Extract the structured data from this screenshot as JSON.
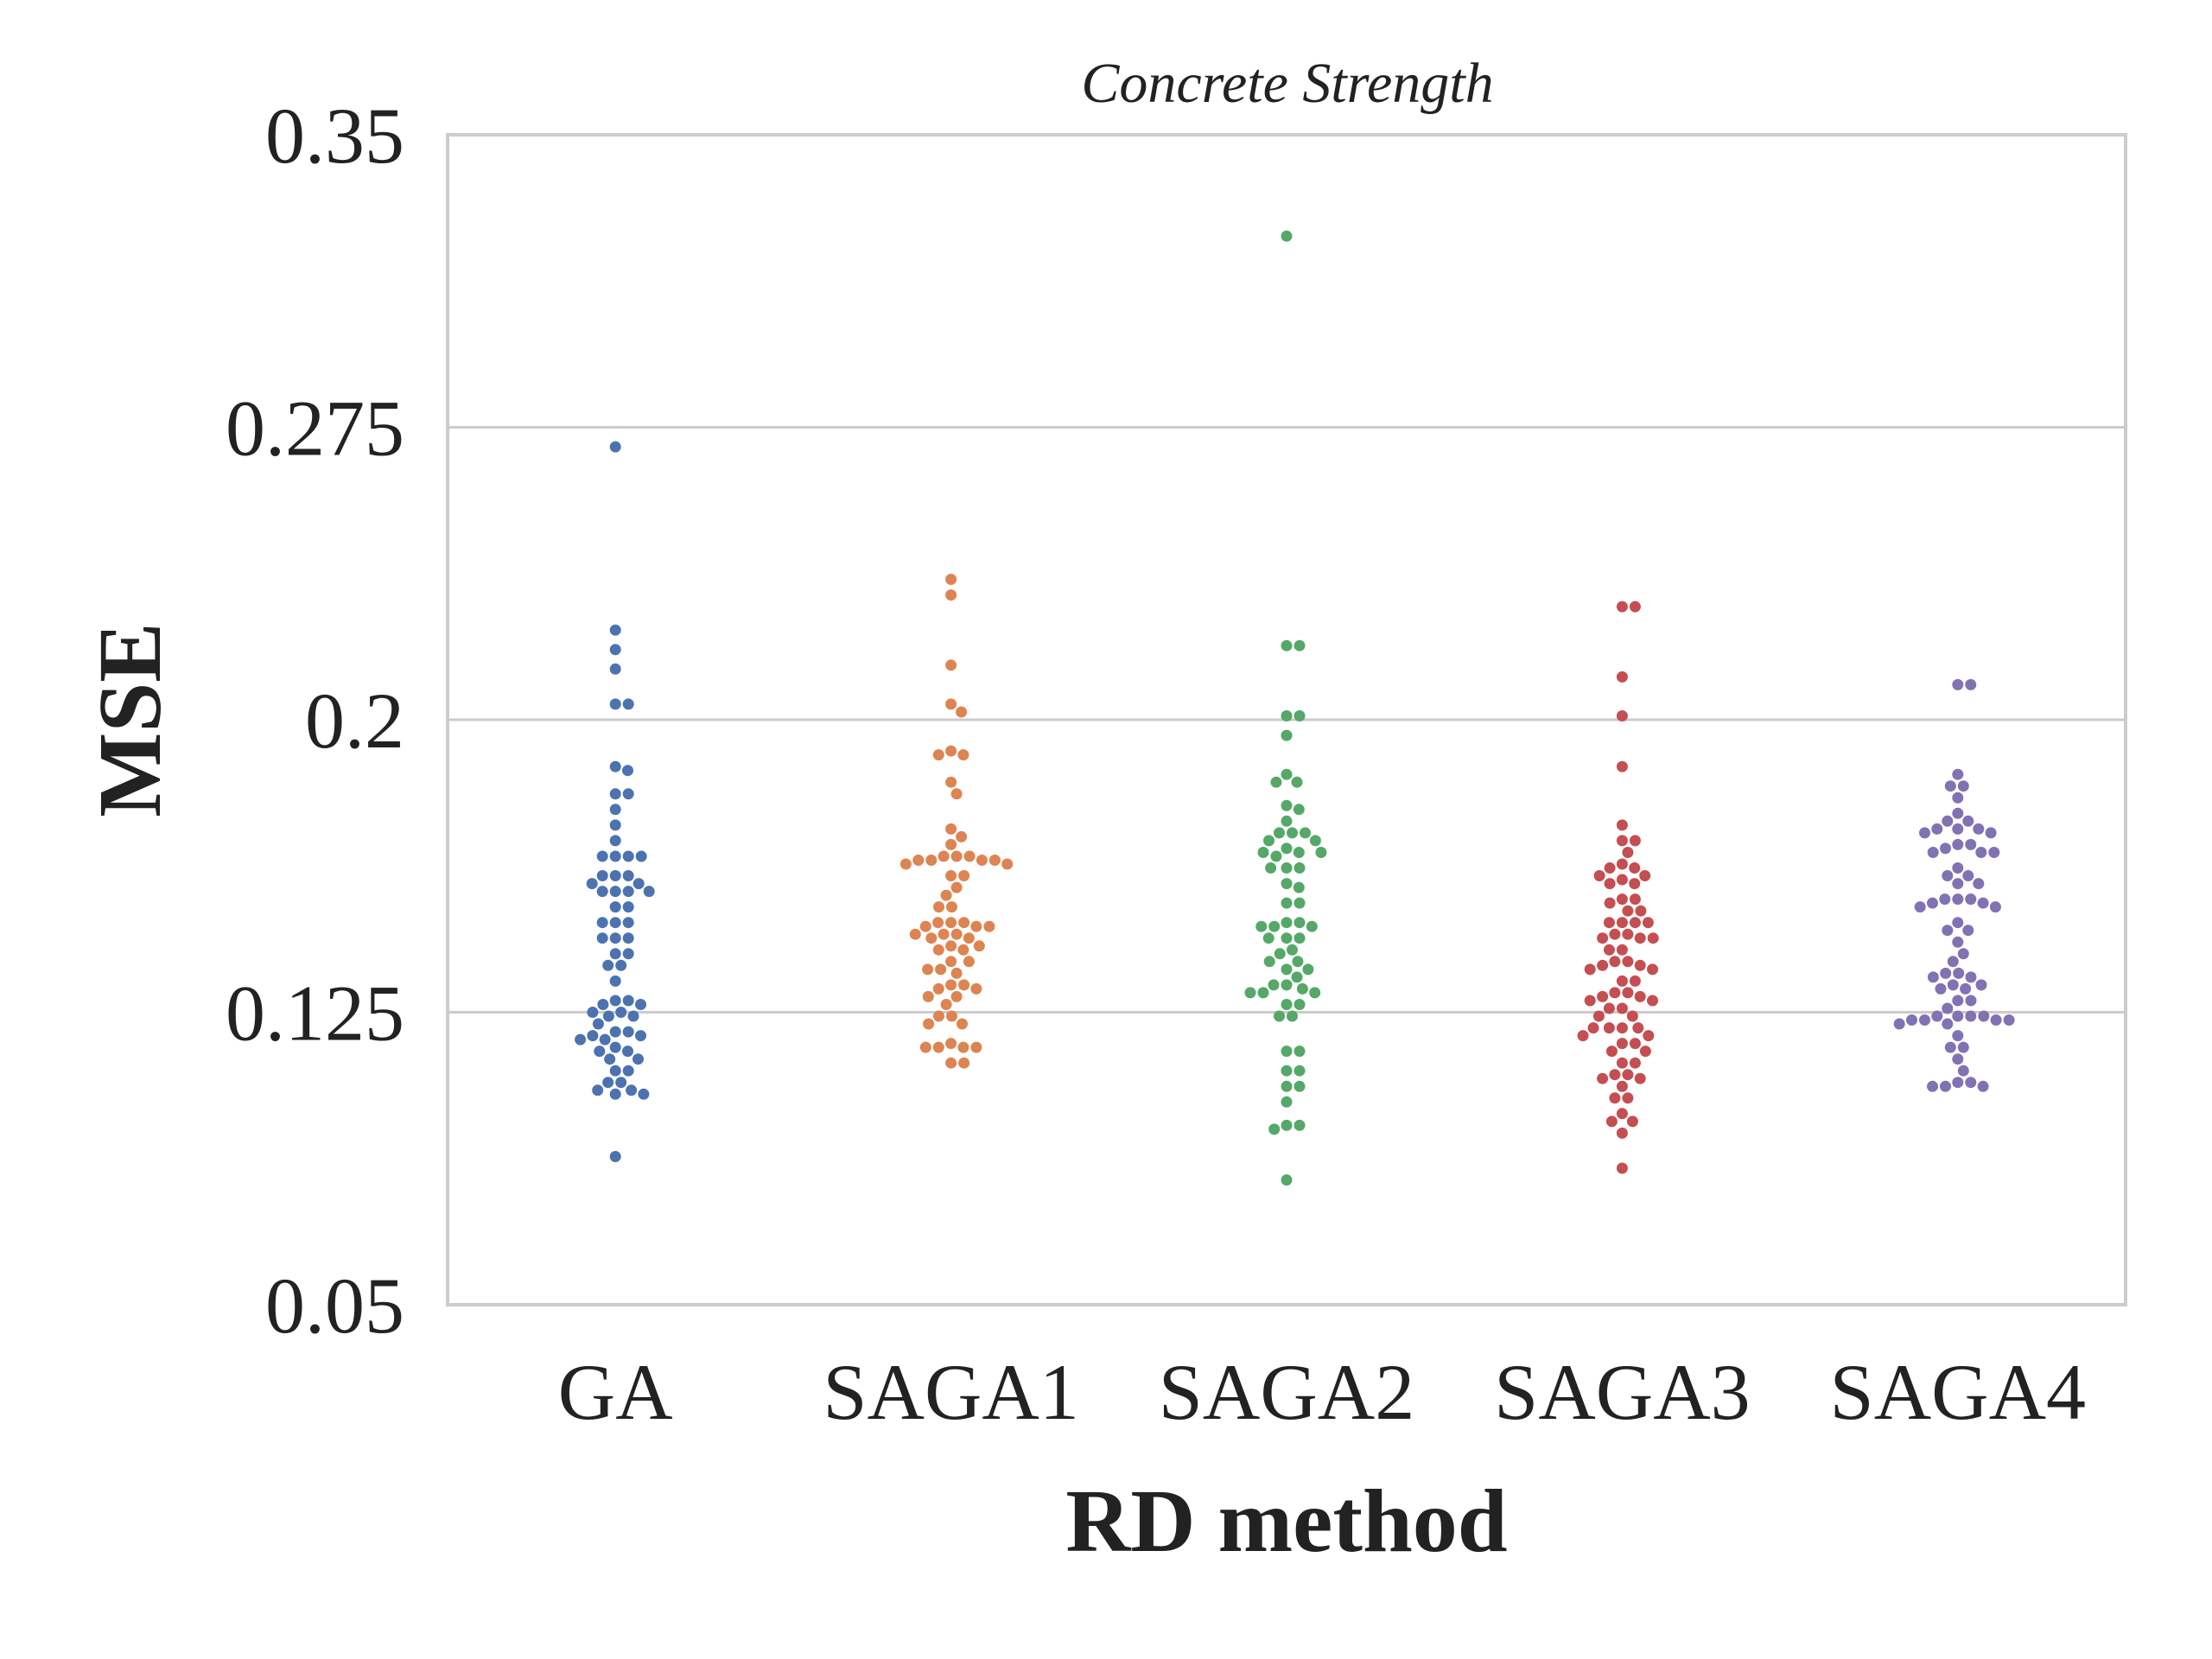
{
  "chart_data": {
    "type": "scatter",
    "subtype": "swarm",
    "title": "Concrete Strength",
    "xlabel": "RD method",
    "ylabel": "MSE",
    "ylim": [
      0.05,
      0.35
    ],
    "yticks": [
      0.05,
      0.125,
      0.2,
      0.275,
      0.35
    ],
    "ytick_labels": [
      "0.05",
      "0.125",
      "0.2",
      "0.275",
      "0.35"
    ],
    "grid": true,
    "categories": [
      "GA",
      "SAGA1",
      "SAGA2",
      "SAGA3",
      "SAGA4"
    ],
    "series": [
      {
        "category": "GA",
        "color": "#4c72b0",
        "values": [
          0.27,
          0.223,
          0.218,
          0.213,
          0.204,
          0.204,
          0.188,
          0.187,
          0.181,
          0.181,
          0.177,
          0.173,
          0.169,
          0.165,
          0.165,
          0.165,
          0.165,
          0.16,
          0.16,
          0.16,
          0.158,
          0.158,
          0.156,
          0.156,
          0.156,
          0.156,
          0.152,
          0.152,
          0.148,
          0.148,
          0.148,
          0.144,
          0.144,
          0.144,
          0.14,
          0.14,
          0.137,
          0.137,
          0.133,
          0.128,
          0.128,
          0.127,
          0.127,
          0.125,
          0.125,
          0.124,
          0.124,
          0.122,
          0.12,
          0.12,
          0.119,
          0.119,
          0.118,
          0.118,
          0.116,
          0.115,
          0.115,
          0.113,
          0.113,
          0.11,
          0.11,
          0.107,
          0.107,
          0.105,
          0.105,
          0.104,
          0.104,
          0.088
        ]
      },
      {
        "category": "SAGA1",
        "color": "#dd8452",
        "values": [
          0.236,
          0.232,
          0.214,
          0.204,
          0.202,
          0.192,
          0.191,
          0.191,
          0.184,
          0.181,
          0.172,
          0.17,
          0.168,
          0.165,
          0.165,
          0.165,
          0.164,
          0.164,
          0.164,
          0.164,
          0.163,
          0.163,
          0.16,
          0.16,
          0.157,
          0.155,
          0.152,
          0.152,
          0.148,
          0.148,
          0.148,
          0.147,
          0.147,
          0.147,
          0.145,
          0.145,
          0.145,
          0.144,
          0.144,
          0.142,
          0.142,
          0.141,
          0.141,
          0.138,
          0.138,
          0.136,
          0.136,
          0.135,
          0.132,
          0.132,
          0.131,
          0.131,
          0.129,
          0.129,
          0.127,
          0.124,
          0.124,
          0.122,
          0.122,
          0.117,
          0.116,
          0.116,
          0.116,
          0.116,
          0.112,
          0.112
        ]
      },
      {
        "category": "SAGA2",
        "color": "#55a868",
        "values": [
          0.324,
          0.219,
          0.219,
          0.201,
          0.201,
          0.196,
          0.186,
          0.184,
          0.184,
          0.178,
          0.177,
          0.174,
          0.171,
          0.171,
          0.171,
          0.169,
          0.169,
          0.167,
          0.166,
          0.166,
          0.166,
          0.165,
          0.162,
          0.162,
          0.162,
          0.158,
          0.157,
          0.153,
          0.153,
          0.148,
          0.148,
          0.147,
          0.147,
          0.147,
          0.144,
          0.144,
          0.144,
          0.141,
          0.14,
          0.138,
          0.138,
          0.136,
          0.136,
          0.134,
          0.132,
          0.132,
          0.131,
          0.13,
          0.13,
          0.13,
          0.127,
          0.127,
          0.124,
          0.124,
          0.115,
          0.115,
          0.11,
          0.11,
          0.106,
          0.106,
          0.102,
          0.096,
          0.096,
          0.095,
          0.082
        ]
      },
      {
        "category": "SAGA3",
        "color": "#c44e52",
        "values": [
          0.229,
          0.229,
          0.211,
          0.201,
          0.188,
          0.173,
          0.169,
          0.169,
          0.166,
          0.163,
          0.162,
          0.162,
          0.16,
          0.16,
          0.159,
          0.158,
          0.158,
          0.154,
          0.154,
          0.153,
          0.151,
          0.151,
          0.148,
          0.148,
          0.148,
          0.148,
          0.145,
          0.145,
          0.144,
          0.144,
          0.144,
          0.141,
          0.141,
          0.138,
          0.138,
          0.137,
          0.137,
          0.136,
          0.136,
          0.133,
          0.133,
          0.13,
          0.13,
          0.129,
          0.129,
          0.128,
          0.128,
          0.126,
          0.126,
          0.124,
          0.124,
          0.121,
          0.121,
          0.121,
          0.121,
          0.119,
          0.119,
          0.117,
          0.117,
          0.115,
          0.115,
          0.112,
          0.112,
          0.109,
          0.109,
          0.108,
          0.108,
          0.106,
          0.103,
          0.103,
          0.099,
          0.097,
          0.097,
          0.094,
          0.085
        ]
      },
      {
        "category": "SAGA4",
        "color": "#8172b3",
        "values": [
          0.209,
          0.209,
          0.186,
          0.183,
          0.183,
          0.18,
          0.176,
          0.174,
          0.174,
          0.172,
          0.172,
          0.172,
          0.171,
          0.171,
          0.168,
          0.168,
          0.167,
          0.166,
          0.166,
          0.166,
          0.162,
          0.16,
          0.16,
          0.158,
          0.158,
          0.154,
          0.154,
          0.154,
          0.153,
          0.153,
          0.152,
          0.152,
          0.148,
          0.146,
          0.146,
          0.143,
          0.14,
          0.138,
          0.135,
          0.135,
          0.134,
          0.134,
          0.132,
          0.132,
          0.131,
          0.131,
          0.128,
          0.128,
          0.126,
          0.124,
          0.124,
          0.124,
          0.124,
          0.123,
          0.123,
          0.123,
          0.123,
          0.122,
          0.122,
          0.119,
          0.116,
          0.116,
          0.113,
          0.11,
          0.107,
          0.107,
          0.106,
          0.106,
          0.106
        ]
      }
    ]
  }
}
